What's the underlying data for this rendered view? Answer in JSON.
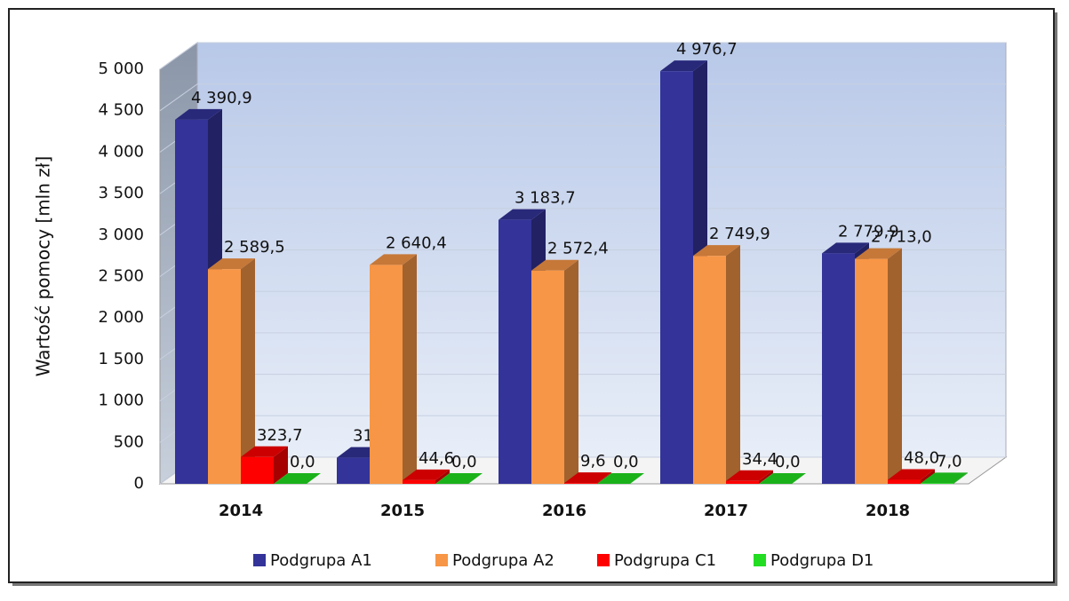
{
  "chart_data": {
    "type": "bar3d",
    "y_label": "Wartość pomocy [mln zł]",
    "categories": [
      "2014",
      "2015",
      "2016",
      "2017",
      "2018"
    ],
    "series": [
      {
        "name": "Podgrupa A1",
        "color": "#333399",
        "values": [
          4390.9,
          315.1,
          3183.7,
          4976.7,
          2779.9
        ],
        "value_labels": [
          "4 390,9",
          "315,1",
          "3 183,7",
          "4 976,7",
          "2 779,9"
        ]
      },
      {
        "name": "Podgrupa A2",
        "color": "#f79646",
        "values": [
          2589.5,
          2640.4,
          2572.4,
          2749.9,
          2713.0
        ],
        "value_labels": [
          "2 589,5",
          "2 640,4",
          "2 572,4",
          "2 749,9",
          "2 713,0"
        ]
      },
      {
        "name": "Podgrupa C1",
        "color": "#ff0000",
        "values": [
          323.7,
          44.6,
          9.6,
          34.4,
          48.0
        ],
        "value_labels": [
          "323,7",
          "44,6",
          "9,6",
          "34,4",
          "48,0"
        ]
      },
      {
        "name": "Podgrupa D1",
        "color": "#22dd22",
        "values": [
          0.0,
          0.0,
          0.0,
          0.0,
          7.0
        ],
        "value_labels": [
          "0,0",
          "0,0",
          "0,0",
          "0,0",
          "7,0"
        ]
      }
    ],
    "ylim": [
      0,
      5000
    ],
    "yticks": [
      0,
      500,
      {
        "value": 1000,
        "label": "1 000"
      },
      {
        "value": 1500,
        "label": "1 500"
      },
      {
        "value": 2000,
        "label": "2 000"
      },
      {
        "value": 2500,
        "label": "2 500"
      },
      {
        "value": 3000,
        "label": "3 000"
      },
      {
        "value": 3500,
        "label": "3 500"
      },
      {
        "value": 4000,
        "label": "4 000"
      },
      {
        "value": 4500,
        "label": "4 500"
      },
      {
        "value": 5000,
        "label": "5 000"
      }
    ],
    "grid": true,
    "legend": "bottom"
  }
}
